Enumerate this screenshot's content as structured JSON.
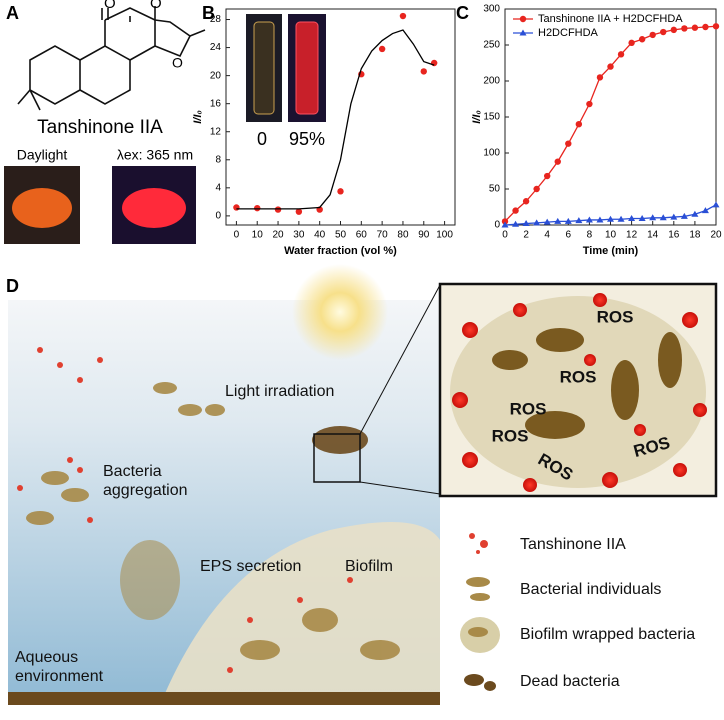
{
  "panel_labels": [
    "A",
    "B",
    "C",
    "D"
  ],
  "panel_a": {
    "compound": "Tanshinone IIA",
    "photo_labels": [
      "Daylight",
      "λex: 365 nm"
    ]
  },
  "chart_data": [
    {
      "type": "scatter",
      "inset_labels": [
        "0",
        "95%"
      ],
      "xlabel": "Water fraction (vol %)",
      "ylabel": "I/I₀",
      "xlim": [
        -5,
        105
      ],
      "ylim": [
        -1.3,
        29.5
      ],
      "xticks": [
        0,
        10,
        20,
        30,
        40,
        50,
        60,
        70,
        80,
        90,
        100
      ],
      "yticks": [
        0,
        4,
        8,
        12,
        16,
        20,
        24,
        28
      ],
      "series": [
        {
          "color": "#e8251f",
          "mode": "markers",
          "marker": "circle",
          "x": [
            0,
            10,
            20,
            30,
            40,
            50,
            60,
            70,
            80,
            90,
            95
          ],
          "values": [
            1.2,
            1.1,
            0.9,
            0.6,
            0.9,
            3.5,
            20.2,
            23.8,
            28.5,
            20.6,
            21.8
          ]
        },
        {
          "color": "#000000",
          "mode": "line",
          "x": [
            0,
            10,
            20,
            30,
            40,
            45,
            50,
            55,
            60,
            65,
            70,
            75,
            80,
            85,
            90,
            95
          ],
          "values": [
            1,
            1,
            1,
            1,
            1.2,
            3,
            8,
            16,
            21,
            23.5,
            25,
            26,
            26.5,
            24.5,
            22,
            21.5
          ]
        }
      ]
    },
    {
      "type": "line",
      "xlabel": "Time (min)",
      "ylabel": "I/I₀",
      "legend": "top-left",
      "xlim": [
        0,
        20
      ],
      "ylim": [
        0,
        300
      ],
      "xticks": [
        0,
        2,
        4,
        6,
        8,
        10,
        12,
        14,
        16,
        18,
        20
      ],
      "yticks": [
        0,
        50,
        100,
        150,
        200,
        250,
        300
      ],
      "x": [
        0,
        1,
        2,
        3,
        4,
        5,
        6,
        7,
        8,
        9,
        10,
        11,
        12,
        13,
        14,
        15,
        16,
        17,
        18,
        19,
        20
      ],
      "series": [
        {
          "name": "Tanshinone IIA + H2DCFHDA",
          "color": "#e8251f",
          "mode": "lines+markers",
          "marker": "circle",
          "values": [
            5,
            20,
            33,
            50,
            68,
            88,
            113,
            140,
            168,
            205,
            220,
            237,
            253,
            258,
            264,
            268,
            271,
            273,
            274,
            275,
            276
          ]
        },
        {
          "name": "H2DCFHDA",
          "color": "#2a4fd6",
          "mode": "lines+markers",
          "marker": "triangle",
          "values": [
            0,
            1,
            2,
            3,
            4,
            5,
            5,
            6,
            7,
            7,
            8,
            8,
            9,
            9,
            10,
            10,
            11,
            12,
            15,
            20,
            28
          ]
        }
      ]
    }
  ],
  "panel_d": {
    "scene_labels": [
      "Light irradiation",
      "Bacteria aggregation",
      "EPS secretion",
      "Biofilm",
      "Aqueous environment"
    ],
    "ros_labels": [
      "ROS",
      "ROS",
      "ROS",
      "ROS",
      "ROS",
      "ROS"
    ],
    "legend": [
      "Tanshinone IIA",
      "Bacterial individuals",
      "Biofilm wrapped bacteria",
      "Dead bacteria"
    ]
  }
}
